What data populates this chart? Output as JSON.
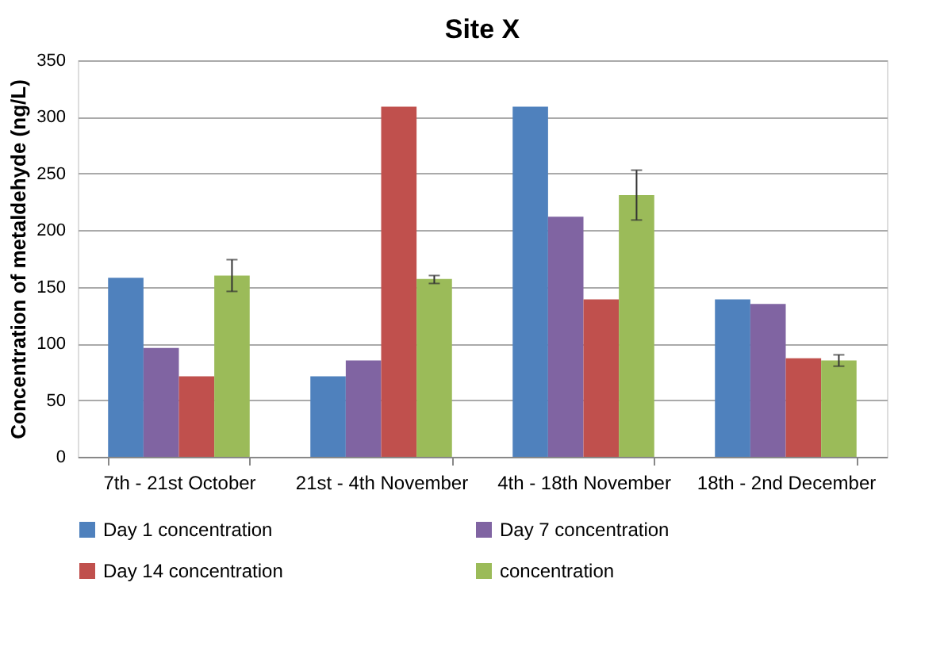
{
  "chart_data": {
    "type": "bar",
    "title": "Site X",
    "ylabel": "Concentration of metaldehyde (ng/L)",
    "categories": [
      "7th - 21st October",
      "21st - 4th November",
      "4th - 18th November",
      "18th - 2nd December"
    ],
    "series": [
      {
        "name": "Day 1 concentration",
        "color": "#4f81bd",
        "values": [
          158,
          71,
          309,
          139
        ]
      },
      {
        "name": "Day 7  concentration",
        "color": "#8064a2",
        "values": [
          96,
          85,
          212,
          135
        ]
      },
      {
        "name": "Day 14 concentration",
        "color": "#c0504d",
        "values": [
          71,
          309,
          139,
          87
        ]
      },
      {
        "name": "concentration",
        "color": "#9bbb59",
        "values": [
          160,
          157,
          231,
          85
        ],
        "errors": [
          [
            146,
            174
          ],
          [
            153,
            160
          ],
          [
            209,
            253
          ],
          [
            80,
            90
          ]
        ]
      }
    ],
    "ylim": [
      0,
      350
    ],
    "yticks": [
      0,
      50,
      100,
      150,
      200,
      250,
      300,
      350
    ],
    "grid": "y",
    "legend": "bottom"
  }
}
